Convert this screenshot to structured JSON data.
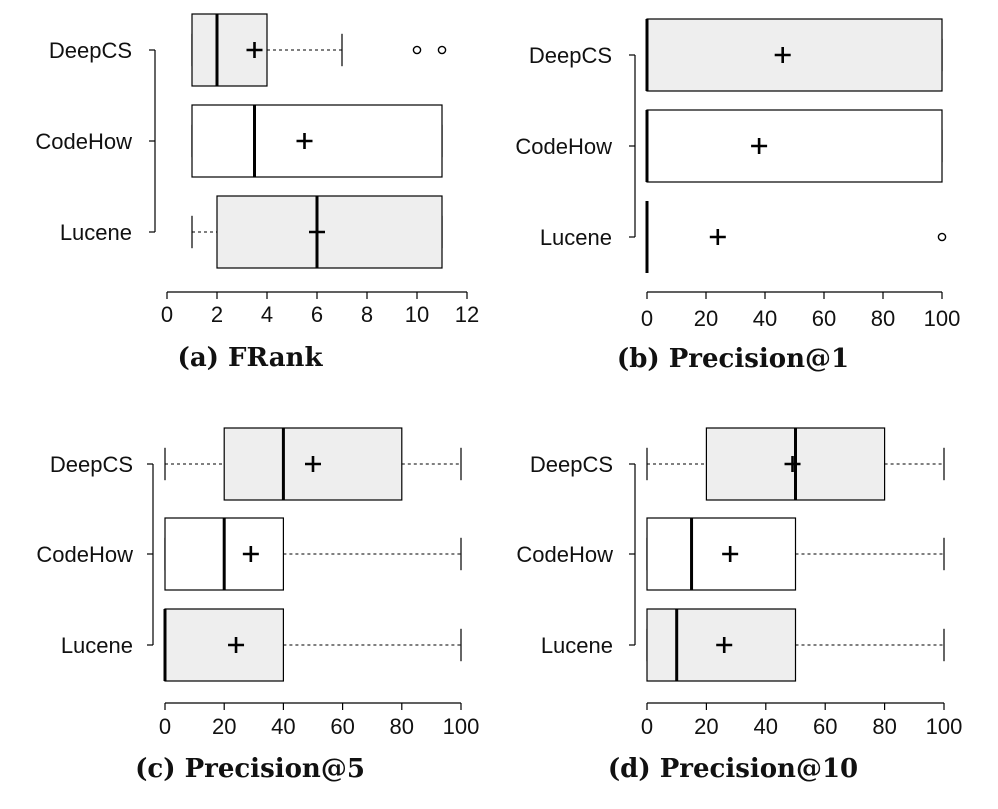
{
  "colors": {
    "box_fill_shaded": "#eeeeee",
    "box_fill_plain": "#ffffff",
    "stroke": "#000000"
  },
  "chart_data": [
    {
      "type": "boxplot",
      "orientation": "horizontal",
      "title": "(a) FRank",
      "categories": [
        "DeepCS",
        "CodeHow",
        "Lucene"
      ],
      "xlim": [
        0,
        12
      ],
      "xticks": [
        0,
        2,
        4,
        6,
        8,
        10,
        12
      ],
      "boxes": [
        {
          "name": "DeepCS",
          "whisker_low": 1,
          "q1": 1,
          "median": 2,
          "q3": 4,
          "whisker_high": 7,
          "mean": 3.5,
          "outliers": [
            10,
            11
          ],
          "shaded": true
        },
        {
          "name": "CodeHow",
          "whisker_low": 1,
          "q1": 1,
          "median": 3.5,
          "q3": 11,
          "whisker_high": 11,
          "mean": 5.5,
          "outliers": [],
          "shaded": false
        },
        {
          "name": "Lucene",
          "whisker_low": 1,
          "q1": 2,
          "median": 6,
          "q3": 11,
          "whisker_high": 11,
          "mean": 6,
          "outliers": [],
          "shaded": true
        }
      ]
    },
    {
      "type": "boxplot",
      "orientation": "horizontal",
      "title": "(b) Precision@1",
      "categories": [
        "DeepCS",
        "CodeHow",
        "Lucene"
      ],
      "xlim": [
        0,
        100
      ],
      "xticks": [
        0,
        20,
        40,
        60,
        80,
        100
      ],
      "boxes": [
        {
          "name": "DeepCS",
          "whisker_low": 0,
          "q1": 0,
          "median": 0,
          "q3": 100,
          "whisker_high": 100,
          "mean": 46,
          "outliers": [],
          "shaded": true
        },
        {
          "name": "CodeHow",
          "whisker_low": 0,
          "q1": 0,
          "median": 0,
          "q3": 100,
          "whisker_high": 100,
          "mean": 38,
          "outliers": [],
          "shaded": false
        },
        {
          "name": "Lucene",
          "whisker_low": 0,
          "q1": 0,
          "median": 0,
          "q3": 0,
          "whisker_high": 0,
          "mean": 24,
          "outliers": [
            100
          ],
          "shaded": true
        }
      ]
    },
    {
      "type": "boxplot",
      "orientation": "horizontal",
      "title": "(c) Precision@5",
      "categories": [
        "DeepCS",
        "CodeHow",
        "Lucene"
      ],
      "xlim": [
        0,
        100
      ],
      "xticks": [
        0,
        20,
        40,
        60,
        80,
        100
      ],
      "boxes": [
        {
          "name": "DeepCS",
          "whisker_low": 0,
          "q1": 20,
          "median": 40,
          "q3": 80,
          "whisker_high": 100,
          "mean": 50,
          "outliers": [],
          "shaded": true
        },
        {
          "name": "CodeHow",
          "whisker_low": 0,
          "q1": 0,
          "median": 20,
          "q3": 40,
          "whisker_high": 100,
          "mean": 29,
          "outliers": [],
          "shaded": false
        },
        {
          "name": "Lucene",
          "whisker_low": 0,
          "q1": 0,
          "median": 0,
          "q3": 40,
          "whisker_high": 100,
          "mean": 24,
          "outliers": [],
          "shaded": true
        }
      ]
    },
    {
      "type": "boxplot",
      "orientation": "horizontal",
      "title": "(d) Precision@10",
      "categories": [
        "DeepCS",
        "CodeHow",
        "Lucene"
      ],
      "xlim": [
        0,
        100
      ],
      "xticks": [
        0,
        20,
        40,
        60,
        80,
        100
      ],
      "boxes": [
        {
          "name": "DeepCS",
          "whisker_low": 0,
          "q1": 20,
          "median": 50,
          "q3": 80,
          "whisker_high": 100,
          "mean": 49,
          "outliers": [],
          "shaded": true
        },
        {
          "name": "CodeHow",
          "whisker_low": 0,
          "q1": 0,
          "median": 15,
          "q3": 50,
          "whisker_high": 100,
          "mean": 28,
          "outliers": [],
          "shaded": false
        },
        {
          "name": "Lucene",
          "whisker_low": 0,
          "q1": 0,
          "median": 10,
          "q3": 50,
          "whisker_high": 100,
          "mean": 26,
          "outliers": [],
          "shaded": true
        }
      ]
    }
  ]
}
